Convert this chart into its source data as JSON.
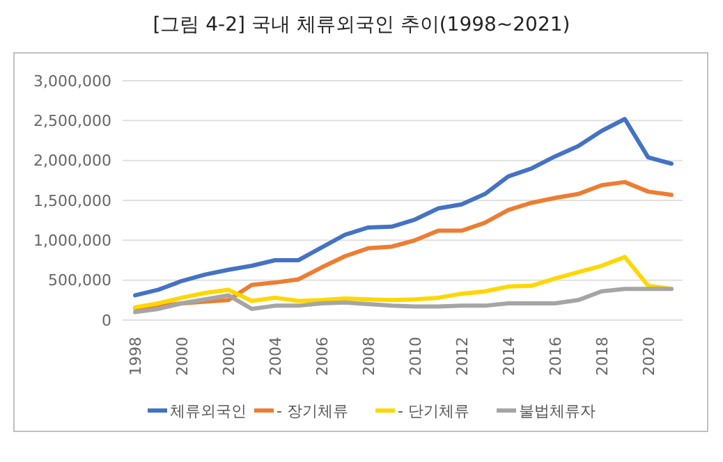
{
  "chart_data": {
    "type": "line",
    "title": "[그림 4-2] 국내 체류외국인 추이(1998~2021)",
    "categories": [
      "1998",
      null,
      "2000",
      null,
      "2002",
      null,
      "2004",
      null,
      "2006",
      null,
      "2008",
      null,
      "2010",
      null,
      "2012",
      null,
      "2014",
      null,
      "2016",
      null,
      "2018",
      null,
      "2020",
      null
    ],
    "series": [
      {
        "name": "체류외국인",
        "color": "#4472c4",
        "values": [
          310000,
          380000,
          490000,
          570000,
          630000,
          680000,
          750000,
          750000,
          910000,
          1070000,
          1160000,
          1170000,
          1260000,
          1400000,
          1450000,
          1580000,
          1800000,
          1900000,
          2050000,
          2180000,
          2370000,
          2520000,
          2040000,
          1960000
        ]
      },
      {
        "name": "- 장기체류",
        "color": "#ed7d31",
        "values": [
          150000,
          170000,
          210000,
          230000,
          250000,
          440000,
          470000,
          510000,
          660000,
          800000,
          900000,
          920000,
          1000000,
          1120000,
          1120000,
          1220000,
          1380000,
          1470000,
          1530000,
          1580000,
          1690000,
          1730000,
          1610000,
          1570000
        ]
      },
      {
        "name": "- 단기체류",
        "color": "#ffd700",
        "values": [
          160000,
          210000,
          280000,
          340000,
          380000,
          240000,
          280000,
          240000,
          250000,
          270000,
          260000,
          250000,
          260000,
          280000,
          330000,
          360000,
          420000,
          430000,
          520000,
          600000,
          680000,
          790000,
          430000,
          390000
        ]
      },
      {
        "name": "불법체류자",
        "color": "#a5a5a5",
        "values": [
          100000,
          140000,
          210000,
          260000,
          310000,
          140000,
          180000,
          180000,
          210000,
          220000,
          200000,
          180000,
          170000,
          170000,
          180000,
          180000,
          210000,
          210000,
          210000,
          250000,
          360000,
          390000,
          390000,
          390000
        ]
      }
    ],
    "ylim": [
      0,
      3000000
    ],
    "yticks": [
      {
        "value": 0,
        "label": "0"
      },
      {
        "value": 500000,
        "label": "500,000"
      },
      {
        "value": 1000000,
        "label": "1,000,000"
      },
      {
        "value": 1500000,
        "label": "1,500,000"
      },
      {
        "value": 2000000,
        "label": "2,000,000"
      },
      {
        "value": 2500000,
        "label": "2,500,000"
      },
      {
        "value": 3000000,
        "label": "3,000,000"
      }
    ],
    "grid": "y",
    "legend": "bottom",
    "marker": "none",
    "line_style": "solid"
  }
}
